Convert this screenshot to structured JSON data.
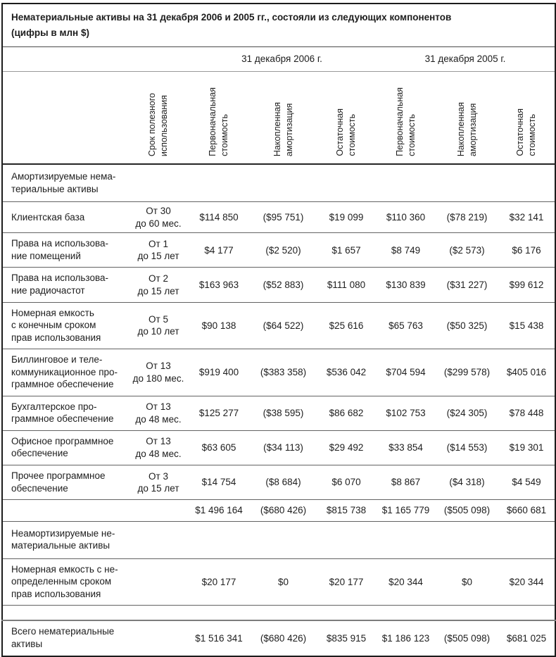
{
  "table": {
    "title": "Нематериальные активы на 31 декабря 2006 и 2005 гг., состояли из следующих компонентов\n(цифры в млн $)",
    "groups": {
      "y2006": "31 декабря 2006 г.",
      "y2005": "31 декабря 2005 г."
    },
    "headers": {
      "life": "Срок полезного\nиспользования",
      "cost": "Первоначальная\nстоимость",
      "amort": "Накопленная\nамортизация",
      "net": "Остаточная\nстоимость"
    },
    "rows": [
      {
        "label": "Амортизируемые нема-\nтериальные активы",
        "life": "",
        "c2006_cost": "",
        "c2006_amort": "",
        "c2006_net": "",
        "c2005_cost": "",
        "c2005_amort": "",
        "c2005_net": ""
      },
      {
        "label": "Клиентская база",
        "life": "От 30\nдо 60 мес.",
        "c2006_cost": "$114 850",
        "c2006_amort": "($95 751)",
        "c2006_net": "$19 099",
        "c2005_cost": "$110 360",
        "c2005_amort": "($78 219)",
        "c2005_net": "$32 141"
      },
      {
        "label": "Права на использова-\nние помещений",
        "life": "От 1\nдо 15 лет",
        "c2006_cost": "$4 177",
        "c2006_amort": "($2 520)",
        "c2006_net": "$1 657",
        "c2005_cost": "$8 749",
        "c2005_amort": "($2 573)",
        "c2005_net": "$6 176"
      },
      {
        "label": "Права на использова-\nние радиочастот",
        "life": "От 2\nдо 15 лет",
        "c2006_cost": "$163 963",
        "c2006_amort": "($52 883)",
        "c2006_net": "$111 080",
        "c2005_cost": "$130 839",
        "c2005_amort": "($31 227)",
        "c2005_net": "$99 612"
      },
      {
        "label": "Номерная емкость\nс конечным сроком\nправ использования",
        "life": "От 5\nдо 10 лет",
        "c2006_cost": "$90 138",
        "c2006_amort": "($64 522)",
        "c2006_net": "$25 616",
        "c2005_cost": "$65 763",
        "c2005_amort": "($50 325)",
        "c2005_net": "$15 438"
      },
      {
        "label": "Биллинговое и теле-\nкоммуникационное про-\nграммное обеспечение",
        "life": "От 13\nдо 180 мес.",
        "c2006_cost": "$919 400",
        "c2006_amort": "($383 358)",
        "c2006_net": "$536 042",
        "c2005_cost": "$704 594",
        "c2005_amort": "($299 578)",
        "c2005_net": "$405 016"
      },
      {
        "label": "Бухгалтерское про-\nграммное обеспечение",
        "life": "От 13\nдо 48 мес.",
        "c2006_cost": "$125 277",
        "c2006_amort": "($38 595)",
        "c2006_net": "$86 682",
        "c2005_cost": "$102 753",
        "c2005_amort": "($24 305)",
        "c2005_net": "$78 448"
      },
      {
        "label": "Офисное программное\nобеспечение",
        "life": "От 13\nдо 48 мес.",
        "c2006_cost": "$63 605",
        "c2006_amort": "($34 113)",
        "c2006_net": "$29 492",
        "c2005_cost": "$33 854",
        "c2005_amort": "($14 553)",
        "c2005_net": "$19 301"
      },
      {
        "label": "Прочее программное\nобеспечение",
        "life": "От 3\nдо 15 лет",
        "c2006_cost": "$14 754",
        "c2006_amort": "($8 684)",
        "c2006_net": "$6 070",
        "c2005_cost": "$8 867",
        "c2005_amort": "($4 318)",
        "c2005_net": "$4 549"
      },
      {
        "label": "",
        "life": "",
        "c2006_cost": "$1 496 164",
        "c2006_amort": "($680 426)",
        "c2006_net": "$815 738",
        "c2005_cost": "$1 165 779",
        "c2005_amort": "($505 098)",
        "c2005_net": "$660 681"
      },
      {
        "label": "Неамортизируемые не-\nматериальные активы",
        "life": "",
        "c2006_cost": "",
        "c2006_amort": "",
        "c2006_net": "",
        "c2005_cost": "",
        "c2005_amort": "",
        "c2005_net": ""
      },
      {
        "label": "Номерная емкость с не-\nопределенным сроком\nправ использования",
        "life": "",
        "c2006_cost": "$20 177",
        "c2006_amort": "$0",
        "c2006_net": "$20 177",
        "c2005_cost": "$20 344",
        "c2005_amort": "$0",
        "c2005_net": "$20 344"
      },
      {
        "label": "",
        "life": "",
        "c2006_cost": "",
        "c2006_amort": "",
        "c2006_net": "",
        "c2005_cost": "",
        "c2005_amort": "",
        "c2005_net": ""
      },
      {
        "label": "Всего нематериальные\nактивы",
        "life": "",
        "c2006_cost": "$1 516 341",
        "c2006_amort": "($680 426)",
        "c2006_net": "$835 915",
        "c2005_cost": "$1 186 123",
        "c2005_amort": "($505 098)",
        "c2005_net": "$681 025"
      }
    ]
  }
}
